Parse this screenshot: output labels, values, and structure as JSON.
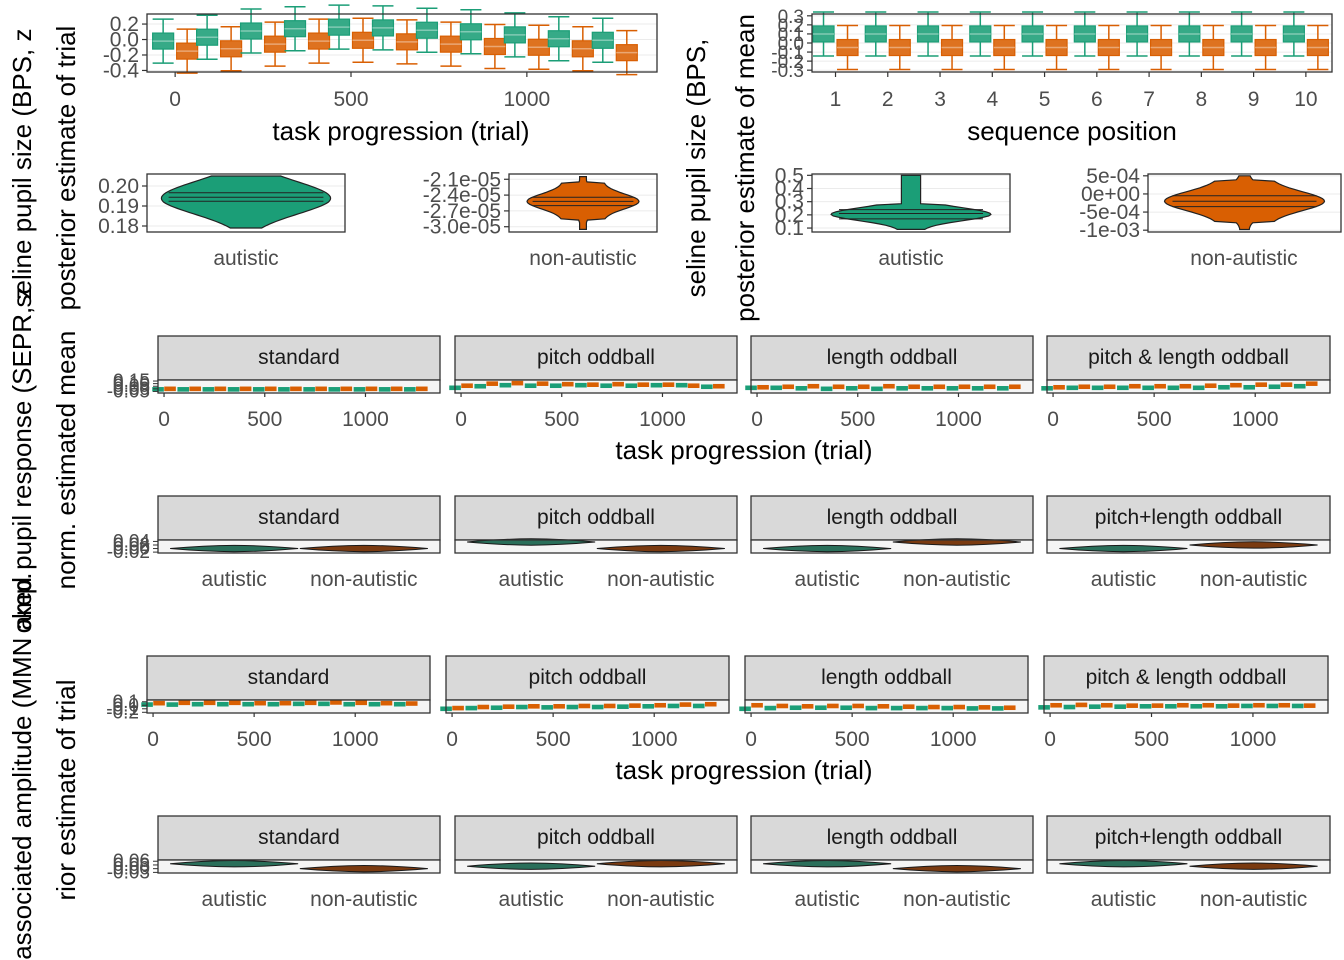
{
  "colors": {
    "autistic": "#1b9e77",
    "non_autistic": "#d95f02",
    "panel_border": "#333333",
    "grid": "#ebebeb",
    "strip_fill": "#d9d9d9"
  },
  "chart_data": [
    {
      "id": "A",
      "type": "box",
      "xlabel": "task progression (trial)",
      "x_ticks": [
        "0",
        "500",
        "1000"
      ],
      "x_tick_values": [
        0,
        500,
        1000
      ],
      "xlim": [
        -80,
        1370
      ],
      "y_ticks": [
        "0.2",
        "0.0",
        "-0.2",
        "-0.4"
      ],
      "y_tick_values": [
        0.2,
        0.0,
        -0.2,
        -0.4
      ],
      "ylim": [
        -0.42,
        0.33
      ],
      "x_centers": [
        0,
        125,
        250,
        375,
        500,
        625,
        750,
        875,
        1000,
        1125,
        1250
      ],
      "series": [
        {
          "group": "autistic",
          "medians": [
            -0.02,
            0.03,
            0.11,
            0.14,
            0.16,
            0.15,
            0.12,
            0.1,
            0.06,
            0.01,
            -0.01
          ]
        },
        {
          "group": "non_autistic",
          "medians": [
            -0.15,
            -0.12,
            -0.06,
            -0.02,
            -0.01,
            -0.03,
            -0.06,
            -0.09,
            -0.1,
            -0.12,
            -0.17
          ]
        }
      ]
    },
    {
      "id": "B",
      "type": "box",
      "xlabel": "sequence position",
      "x_ticks": [
        "1",
        "2",
        "3",
        "4",
        "5",
        "6",
        "7",
        "8",
        "9",
        "10"
      ],
      "x_tick_values": [
        1,
        2,
        3,
        4,
        5,
        6,
        7,
        8,
        9,
        10
      ],
      "xlim": [
        0.55,
        10.5
      ],
      "y_ticks": [
        "0.3",
        "0.2",
        "0.1",
        "0.0",
        "-0.1",
        "-0.2",
        "-0.3"
      ],
      "y_tick_values": [
        0.3,
        0.2,
        0.1,
        0.0,
        -0.1,
        -0.2,
        -0.3
      ],
      "ylim": [
        -0.32,
        0.32
      ],
      "series": [
        {
          "group": "autistic",
          "medians": [
            0.1,
            0.1,
            0.1,
            0.1,
            0.1,
            0.1,
            0.1,
            0.1,
            0.1,
            0.1
          ]
        },
        {
          "group": "non_autistic",
          "medians": [
            -0.05,
            -0.05,
            -0.05,
            -0.05,
            -0.05,
            -0.05,
            -0.05,
            -0.05,
            -0.05,
            -0.05
          ]
        }
      ]
    },
    {
      "id": "C1",
      "type": "violin",
      "category": "autistic",
      "y_ticks": [
        "0.20",
        "0.19",
        "0.18"
      ],
      "y_tick_values": [
        0.2,
        0.19,
        0.18
      ],
      "ylim": [
        0.177,
        0.206
      ],
      "quantiles": [
        0.1924,
        0.1944,
        0.1966
      ],
      "group": "autistic"
    },
    {
      "id": "C2",
      "type": "violin",
      "category": "non-autistic",
      "y_ticks": [
        "-2.1e-05",
        "-2.4e-05",
        "-2.7e-05",
        "-3.0e-05"
      ],
      "y_tick_values": [
        -2.1e-05,
        -2.4e-05,
        -2.7e-05,
        -3e-05
      ],
      "ylim": [
        -3.1e-05,
        -2e-05
      ],
      "quantiles": [
        -2.6e-05,
        -2.52e-05,
        -2.44e-05
      ],
      "group": "non_autistic"
    },
    {
      "id": "D1",
      "type": "violin",
      "category": "autistic",
      "y_ticks": [
        "0.5",
        "0.4",
        "0.3",
        "0.2",
        "0.1"
      ],
      "y_tick_values": [
        0.5,
        0.4,
        0.3,
        0.2,
        0.1
      ],
      "ylim": [
        0.07,
        0.51
      ],
      "quantiles": [
        0.17,
        0.21,
        0.24
      ],
      "group": "autistic"
    },
    {
      "id": "D2",
      "type": "violin",
      "category": "non-autistic",
      "y_ticks": [
        "5e-04",
        "0e+00",
        "-5e-04",
        "-1e-03"
      ],
      "y_tick_values": [
        0.0005,
        0.0,
        -0.0005,
        -0.001
      ],
      "ylim": [
        -0.00105,
        0.00055
      ],
      "quantiles": [
        -0.00035,
        -0.0002,
        -5e-05
      ],
      "group": "non_autistic"
    },
    {
      "id": "E",
      "type": "box_faceted",
      "xlabel": "task progression (trial)",
      "facets": [
        "standard",
        "pitch oddball",
        "length oddball",
        "pitch & length oddball"
      ],
      "x_ticks": [
        "0",
        "500",
        "1000"
      ],
      "x_tick_values": [
        0,
        500,
        1000
      ],
      "xlim": [
        -30,
        1370
      ],
      "y_ticks": [
        "0.15",
        "0.10",
        "0.05",
        "0.00",
        "-0.05"
      ],
      "y_tick_values": [
        0.15,
        0.1,
        0.05,
        0.0,
        -0.05
      ],
      "ylim": [
        -0.08,
        0.17
      ],
      "facet_series": [
        {
          "autistic": [
            -0.01,
            -0.01,
            -0.01,
            -0.01,
            -0.01,
            -0.01,
            -0.01,
            -0.01,
            -0.01,
            -0.01,
            -0.01
          ],
          "non_autistic": [
            0.0,
            0.0,
            0.0,
            0.0,
            0.0,
            0.0,
            0.0,
            0.0,
            0.0,
            0.0,
            0.0
          ]
        },
        {
          "autistic": [
            0.02,
            0.05,
            0.07,
            0.06,
            0.06,
            0.07,
            0.06,
            0.06,
            0.07,
            0.07,
            0.04
          ],
          "non_autistic": [
            0.06,
            0.1,
            0.11,
            0.1,
            0.09,
            0.08,
            0.09,
            0.08,
            0.08,
            0.06,
            0.05
          ]
        },
        {
          "autistic": [
            0.02,
            0.02,
            0.01,
            0.0,
            0.01,
            0.0,
            0.01,
            0.01,
            0.01,
            0.01,
            0.01
          ],
          "non_autistic": [
            0.03,
            0.04,
            0.05,
            0.04,
            0.04,
            0.05,
            0.04,
            0.04,
            0.04,
            0.04,
            0.04
          ]
        },
        {
          "autistic": [
            0.01,
            0.02,
            0.02,
            0.02,
            0.02,
            0.02,
            0.02,
            0.03,
            0.03,
            0.04,
            0.05
          ],
          "non_autistic": [
            0.03,
            0.04,
            0.04,
            0.05,
            0.05,
            0.05,
            0.06,
            0.07,
            0.08,
            0.08,
            0.1
          ]
        }
      ]
    },
    {
      "id": "F",
      "type": "violin_faceted",
      "facets": [
        "standard",
        "pitch oddball",
        "length oddball",
        "pitch+length oddball"
      ],
      "categories": [
        "autistic",
        "non-autistic"
      ],
      "y_ticks": [
        "0.04",
        "0.02",
        "0.00",
        "-0.02"
      ],
      "y_tick_values": [
        0.04,
        0.02,
        0.0,
        -0.02
      ],
      "ylim": [
        -0.025,
        0.048
      ],
      "facet_centers": [
        [
          0.0,
          0.0
        ],
        [
          0.04,
          0.0
        ],
        [
          0.0,
          0.04
        ],
        [
          0.0,
          0.02
        ]
      ]
    },
    {
      "id": "G",
      "type": "box_faceted",
      "xlabel": "task progression (trial)",
      "facets": [
        "standard",
        "pitch oddball",
        "length oddball",
        "pitch & length oddball"
      ],
      "x_ticks": [
        "0",
        "500",
        "1000"
      ],
      "x_tick_values": [
        0,
        500,
        1000
      ],
      "xlim": [
        -30,
        1370
      ],
      "y_ticks": [
        "0.1",
        "0.0",
        "-0.1",
        "-0.2"
      ],
      "y_tick_values": [
        0.1,
        0.0,
        -0.1,
        -0.2
      ],
      "ylim": [
        -0.22,
        0.15
      ],
      "facet_series": [
        {
          "autistic": [
            0.02,
            0.02,
            0.03,
            0.03,
            0.03,
            0.03,
            0.04,
            0.04,
            0.03,
            0.03,
            0.03
          ],
          "non_autistic": [
            0.06,
            0.07,
            0.07,
            0.07,
            0.06,
            0.06,
            0.07,
            0.08,
            0.07,
            0.06,
            0.05
          ]
        },
        {
          "autistic": [
            -0.1,
            -0.08,
            -0.07,
            -0.05,
            -0.06,
            -0.05,
            -0.05,
            -0.04,
            -0.03,
            -0.02,
            -0.02
          ],
          "non_autistic": [
            -0.08,
            -0.05,
            -0.04,
            -0.03,
            -0.03,
            -0.02,
            -0.02,
            -0.01,
            0.0,
            0.02,
            0.03
          ]
        },
        {
          "autistic": [
            -0.1,
            -0.08,
            -0.07,
            -0.07,
            -0.07,
            -0.08,
            -0.08,
            -0.08,
            -0.08,
            -0.09,
            -0.09
          ],
          "non_autistic": [
            0.0,
            -0.02,
            -0.03,
            -0.02,
            -0.02,
            -0.03,
            -0.04,
            -0.05,
            -0.05,
            -0.06,
            -0.07
          ]
        },
        {
          "autistic": [
            -0.06,
            -0.05,
            -0.04,
            -0.04,
            -0.03,
            -0.03,
            -0.03,
            -0.03,
            -0.02,
            -0.02,
            -0.02
          ],
          "non_autistic": [
            0.0,
            0.01,
            0.0,
            -0.01,
            -0.01,
            0.0,
            0.0,
            -0.01,
            0.0,
            0.0,
            -0.01
          ]
        }
      ]
    },
    {
      "id": "H",
      "type": "violin_faceted",
      "facets": [
        "standard",
        "pitch oddball",
        "length oddball",
        "pitch+length oddball"
      ],
      "categories": [
        "autistic",
        "non-autistic"
      ],
      "y_ticks": [
        "0.06",
        "0.03",
        "0.00",
        "-0.03"
      ],
      "y_tick_values": [
        0.06,
        0.03,
        0.0,
        -0.03
      ],
      "ylim": [
        -0.035,
        0.07
      ],
      "facet_centers": [
        [
          0.04,
          0.0
        ],
        [
          0.02,
          0.04
        ],
        [
          0.04,
          0.0
        ],
        [
          0.04,
          0.02
        ]
      ]
    }
  ],
  "y_titles": [
    {
      "id": "a",
      "text": "seline pupil size (BPS, z",
      "cx": 22,
      "cy": 168
    },
    {
      "id": "b",
      "text": "posterior estimate of trial",
      "cx": 66,
      "cy": 168
    },
    {
      "id": "c",
      "text": "seline pupil size (BPS,",
      "cx": 696,
      "cy": 168
    },
    {
      "id": "d",
      "text": "posterior estimate of mean",
      "cx": 745,
      "cy": 168
    },
    {
      "id": "e",
      "text": "oked pupil response (SEPR, z",
      "cx": 22,
      "cy": 460
    },
    {
      "id": "f",
      "text": "norm. estimated mean",
      "cx": 66,
      "cy": 460
    },
    {
      "id": "g",
      "text": "vity-associated amplitude (MMN amp.",
      "cx": 22,
      "cy": 790
    },
    {
      "id": "h",
      "text": "rior estimate of trial",
      "cx": 66,
      "cy": 790
    }
  ]
}
